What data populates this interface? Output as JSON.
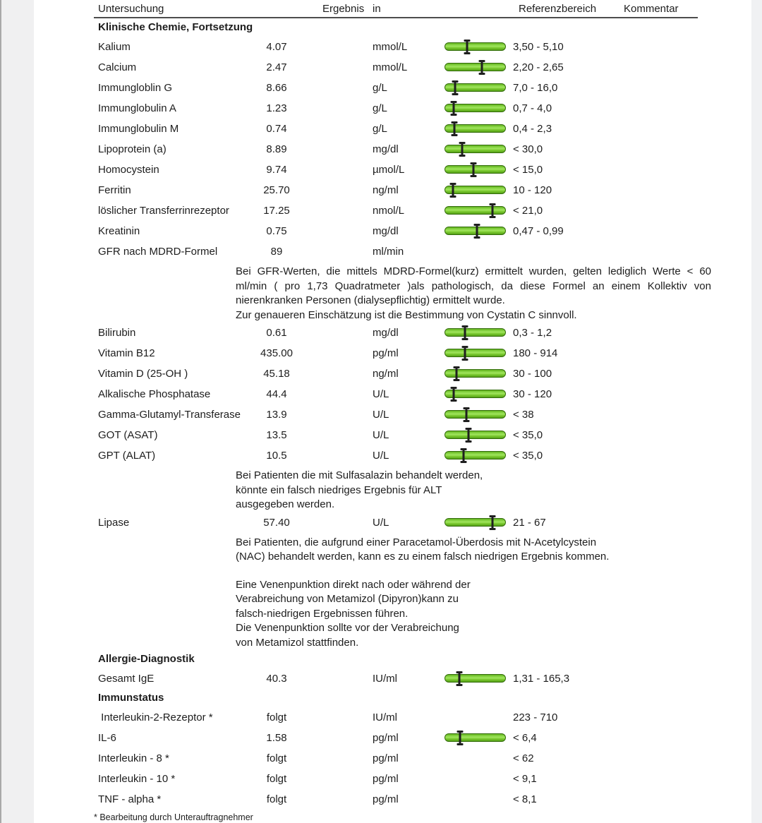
{
  "header": {
    "col_untersuchung": "Untersuchung",
    "col_ergebnis": "Ergebnis",
    "col_in": "in",
    "col_referenzbereich": "Referenzbereich",
    "col_kommentar": "Kommentar"
  },
  "footer": {
    "note": "* Bearbeitung durch Unterauftragnehmer"
  },
  "colors": {
    "bar_fill": "#7ccb30",
    "bar_highlight": "#9fe35c",
    "bar_border": "#336c0b",
    "marker": "#1f1f1f",
    "text": "#1d1d1d",
    "side_margin": "#f0f0f1"
  },
  "content": [
    {
      "type": "section",
      "label": "Klinische Chemie, Fortsetzung"
    },
    {
      "type": "row",
      "name": "Kalium",
      "value": "4.07",
      "unit": "mmol/L",
      "bar": true,
      "marker": 0.37,
      "reference": "3,50 - 5,10"
    },
    {
      "type": "row",
      "name": "Calcium",
      "value": "2.47",
      "unit": "mmol/L",
      "bar": true,
      "marker": 0.61,
      "reference": "2,20 - 2,65"
    },
    {
      "type": "row",
      "name": "Immungloblin G",
      "value": "8.66",
      "unit": "g/L",
      "bar": true,
      "marker": 0.17,
      "reference": "7,0 - 16,0"
    },
    {
      "type": "row",
      "name": "Immunglobulin A",
      "value": "1.23",
      "unit": "g/L",
      "bar": true,
      "marker": 0.15,
      "reference": "0,7 - 4,0"
    },
    {
      "type": "row",
      "name": "Immunglobulin M",
      "value": "0.74",
      "unit": "g/L",
      "bar": true,
      "marker": 0.16,
      "reference": "0,4 - 2,3"
    },
    {
      "type": "row",
      "name": "Lipoprotein (a)",
      "value": "8.89",
      "unit": "mg/dl",
      "bar": true,
      "marker": 0.29,
      "reference": "< 30,0"
    },
    {
      "type": "row",
      "name": "Homocystein",
      "value": "9.74",
      "unit": "µmol/L",
      "bar": true,
      "marker": 0.47,
      "reference": "< 15,0"
    },
    {
      "type": "row",
      "name": "Ferritin",
      "value": "25.70",
      "unit": "ng/ml",
      "bar": true,
      "marker": 0.14,
      "reference": "10 - 120"
    },
    {
      "type": "row",
      "name": "löslicher Transferrinrezeptor",
      "value": "17.25",
      "unit": "nmol/L",
      "bar": true,
      "marker": 0.78,
      "reference": "< 21,0"
    },
    {
      "type": "row",
      "name": "Kreatinin",
      "value": "0.75",
      "unit": "mg/dl",
      "bar": true,
      "marker": 0.53,
      "reference": "0,47 - 0,99"
    },
    {
      "type": "row",
      "name": "GFR nach MDRD-Formel",
      "value": "89",
      "unit": "ml/min",
      "bar": false,
      "marker": null,
      "reference": ""
    },
    {
      "type": "note",
      "justify_lines": 2,
      "gap_before": false,
      "lines": [
        "Bei GFR-Werten, die mittels MDRD-Formel(kurz) ermittelt wurden, gelten lediglich Werte < 60",
        "ml/min ( pro 1,73 Quadratmeter )als pathologisch, da diese Formel an einem Kollektiv von",
        "nierenkranken Personen (dialysepflichtig) ermittelt wurde.",
        "Zur genaueren Einschätzung ist die Bestimmung von Cystatin C sinnvoll."
      ]
    },
    {
      "type": "row",
      "name": "Bilirubin",
      "value": "0.61",
      "unit": "mg/dl",
      "bar": true,
      "marker": 0.33,
      "reference": "0,3 - 1,2"
    },
    {
      "type": "row",
      "name": "Vitamin B12",
      "value": "435.00",
      "unit": "pg/ml",
      "bar": true,
      "marker": 0.33,
      "reference": "180 - 914"
    },
    {
      "type": "row",
      "name": "Vitamin D (25-OH )",
      "value": "45.18",
      "unit": "ng/ml",
      "bar": true,
      "marker": 0.2,
      "reference": "30 - 100"
    },
    {
      "type": "row",
      "name": "Alkalische Phosphatase",
      "value": "44.4",
      "unit": "U/L",
      "bar": true,
      "marker": 0.15,
      "reference": "30 - 120"
    },
    {
      "type": "row",
      "name": "Gamma-Glutamyl-Transferase",
      "value": "13.9",
      "unit": "U/L",
      "bar": true,
      "marker": 0.36,
      "reference": "< 38"
    },
    {
      "type": "row",
      "name": "GOT (ASAT)",
      "value": "13.5",
      "unit": "U/L",
      "bar": true,
      "marker": 0.39,
      "reference": "< 35,0"
    },
    {
      "type": "row",
      "name": "GPT (ALAT)",
      "value": "10.5",
      "unit": "U/L",
      "bar": true,
      "marker": 0.31,
      "reference": "< 35,0"
    },
    {
      "type": "note",
      "justify_lines": 0,
      "gap_before": false,
      "lines": [
        "Bei Patienten die mit Sulfasalazin behandelt werden,",
        "könnte ein falsch niedriges Ergebnis für ALT",
        "ausgegeben werden."
      ]
    },
    {
      "type": "row",
      "name": "Lipase",
      "value": "57.40",
      "unit": "U/L",
      "bar": true,
      "marker": 0.78,
      "reference": "21 - 67"
    },
    {
      "type": "note",
      "justify_lines": 0,
      "gap_before": false,
      "lines": [
        "Bei Patienten, die aufgrund einer Paracetamol-Überdosis mit N-Acetylcystein",
        "(NAC) behandelt werden, kann es zu einem falsch niedrigen Ergebnis kommen."
      ]
    },
    {
      "type": "note",
      "justify_lines": 0,
      "gap_before": true,
      "lines": [
        "Eine Venenpunktion direkt nach oder während der",
        "Verabreichung von Metamizol (Dipyron)kann zu",
        "falsch-niedrigen Ergebnissen führen.",
        "Die Venenpunktion sollte vor der Verabreichung",
        "von Metamizol stattfinden."
      ]
    },
    {
      "type": "section",
      "label": "Allergie-Diagnostik"
    },
    {
      "type": "row",
      "name": "Gesamt IgE",
      "value": "40.3",
      "unit": "IU/ml",
      "bar": true,
      "marker": 0.24,
      "reference": "1,31 - 165,3"
    },
    {
      "type": "section",
      "label": "Immunstatus"
    },
    {
      "type": "row",
      "name": " Interleukin-2-Rezeptor *",
      "value": "folgt",
      "unit": "IU/ml",
      "bar": false,
      "marker": null,
      "reference": "223 - 710"
    },
    {
      "type": "row",
      "name": "IL-6",
      "value": "1.58",
      "unit": "pg/ml",
      "bar": true,
      "marker": 0.25,
      "reference": "< 6,4"
    },
    {
      "type": "row",
      "name": "Interleukin - 8 *",
      "value": "folgt",
      "unit": "pg/ml",
      "bar": false,
      "marker": null,
      "reference": "< 62"
    },
    {
      "type": "row",
      "name": "Interleukin - 10 *",
      "value": "folgt",
      "unit": "pg/ml",
      "bar": false,
      "marker": null,
      "reference": "< 9,1"
    },
    {
      "type": "row",
      "name": "TNF - alpha *",
      "value": "folgt",
      "unit": "pg/ml",
      "bar": false,
      "marker": null,
      "reference": "< 8,1"
    }
  ]
}
